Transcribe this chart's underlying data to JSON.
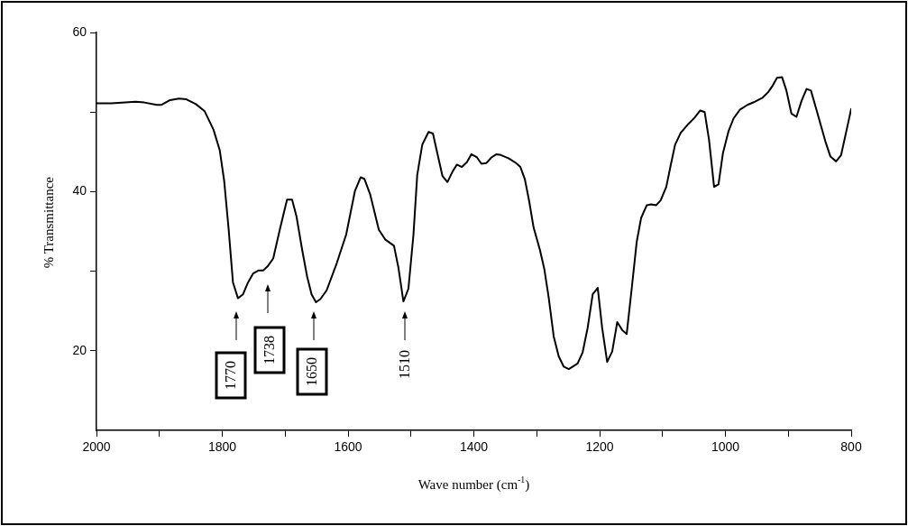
{
  "chart_data": {
    "type": "line",
    "xlabel": "Wave number (cm$^{-1}$)",
    "ylabel": "% Transmittance",
    "xlim": [
      2000,
      800
    ],
    "ylim": [
      10,
      60
    ],
    "xticks": [
      2000,
      {
        "value": 1900,
        "label": null
      },
      1800,
      {
        "value": 1700,
        "label": null
      },
      1600,
      {
        "value": 1500,
        "label": null
      },
      1400,
      {
        "value": 1300,
        "label": null
      },
      1200,
      {
        "value": 1100,
        "label": null
      },
      1000,
      {
        "value": 900,
        "label": null
      },
      800
    ],
    "yticks": [
      20,
      {
        "value": 30,
        "label": null
      },
      40,
      {
        "value": 50,
        "label": null
      },
      60
    ],
    "grid": false,
    "legend": false,
    "marker": "none",
    "line_style": "solid",
    "annotations": [
      "1770",
      "1738",
      "1650",
      "1510"
    ],
    "series": [
      {
        "color": "#000000",
        "x": [
          2000,
          1976,
          1938,
          1924,
          1904,
          1897,
          1883,
          1869,
          1857,
          1842,
          1828,
          1814,
          1804,
          1797,
          1790,
          1783,
          1775,
          1767,
          1759,
          1751,
          1742,
          1735,
          1728,
          1719,
          1708,
          1697,
          1689,
          1682,
          1673,
          1665,
          1658,
          1651,
          1644,
          1634,
          1618,
          1603,
          1589,
          1580,
          1574,
          1565,
          1551,
          1541,
          1527,
          1520,
          1512,
          1504,
          1496,
          1490,
          1482,
          1472,
          1465,
          1458,
          1450,
          1442,
          1434,
          1427,
          1419,
          1411,
          1404,
          1395,
          1388,
          1380,
          1372,
          1364,
          1357,
          1345,
          1333,
          1326,
          1319,
          1312,
          1305,
          1295,
          1288,
          1281,
          1273,
          1265,
          1257,
          1249,
          1235,
          1227,
          1219,
          1211,
          1203,
          1196,
          1188,
          1180,
          1172,
          1164,
          1157,
          1149,
          1141,
          1134,
          1125,
          1118,
          1110,
          1103,
          1094,
          1087,
          1080,
          1071,
          1059,
          1049,
          1040,
          1033,
          1026,
          1018,
          1011,
          1004,
          995,
          987,
          977,
          965,
          953,
          941,
          932,
          925,
          918,
          910,
          903,
          895,
          887,
          879,
          871,
          864,
          856,
          841,
          833,
          824,
          816,
          803,
          800
        ],
        "values": [
          51.1,
          51.1,
          51.3,
          51.2,
          50.9,
          50.9,
          51.5,
          51.7,
          51.6,
          51.0,
          50.1,
          47.8,
          45.2,
          41.4,
          35.4,
          28.6,
          26.6,
          27.1,
          28.6,
          29.7,
          30.1,
          30.1,
          30.6,
          31.6,
          35.4,
          39.0,
          39.0,
          36.9,
          32.7,
          29.3,
          27.1,
          26.1,
          26.5,
          27.6,
          31.0,
          34.6,
          40.1,
          41.8,
          41.6,
          39.7,
          35.2,
          34.0,
          33.2,
          30.5,
          26.2,
          27.8,
          34.6,
          42.1,
          45.9,
          47.5,
          47.3,
          44.8,
          42.0,
          41.2,
          42.5,
          43.4,
          43.1,
          43.7,
          44.7,
          44.3,
          43.5,
          43.6,
          44.3,
          44.7,
          44.6,
          44.2,
          43.6,
          43.1,
          41.6,
          38.8,
          35.5,
          32.7,
          30.3,
          26.7,
          21.8,
          19.3,
          18.0,
          17.7,
          18.4,
          19.8,
          22.9,
          27.1,
          27.9,
          22.9,
          18.6,
          19.9,
          23.6,
          22.6,
          22.1,
          27.8,
          33.7,
          36.7,
          38.3,
          38.4,
          38.3,
          38.9,
          40.6,
          43.3,
          45.9,
          47.4,
          48.5,
          49.3,
          50.2,
          50.0,
          46.5,
          40.6,
          40.9,
          44.8,
          47.6,
          49.2,
          50.3,
          50.9,
          51.3,
          51.8,
          52.5,
          53.3,
          54.3,
          54.4,
          52.7,
          49.8,
          49.4,
          51.4,
          52.9,
          52.7,
          50.5,
          46.3,
          44.4,
          43.8,
          44.6,
          49.3,
          50.4
        ]
      }
    ]
  }
}
